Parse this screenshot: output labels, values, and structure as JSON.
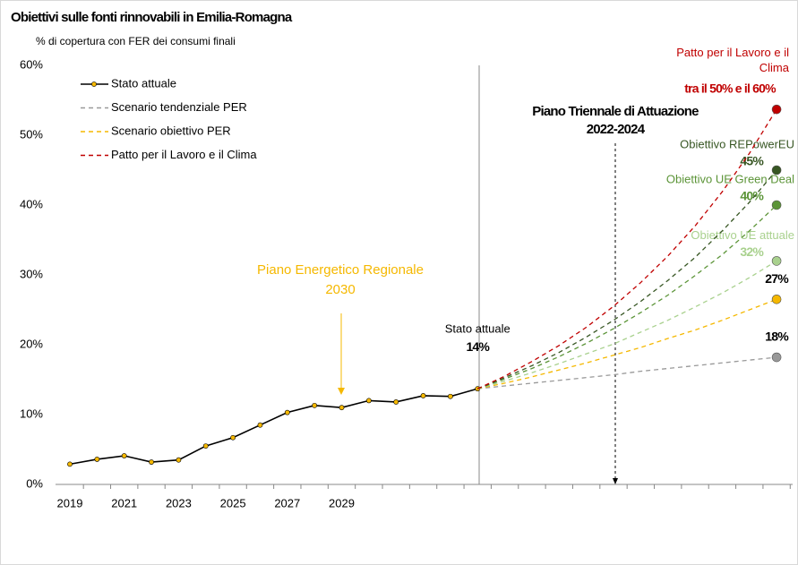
{
  "chart_data": {
    "type": "line",
    "title": "Obiettivi sulle fonti rinnovabili in Emilia-Romagna",
    "subtitle": "% di copertura con FER dei consumi finali",
    "categories": [
      "2019",
      null,
      "2021",
      null,
      "2023",
      null,
      "2025",
      null,
      "2027",
      null,
      "2029",
      null,
      null,
      null,
      null,
      null,
      null,
      null,
      null,
      null,
      null,
      null,
      null,
      null,
      null,
      null,
      null
    ],
    "ylim": [
      0,
      60
    ],
    "yticks": [
      {
        "value": 0,
        "label": "0%"
      },
      {
        "value": 10,
        "label": "10%"
      },
      {
        "value": 20,
        "label": "20%"
      },
      {
        "value": 30,
        "label": "30%"
      },
      {
        "value": 40,
        "label": "40%"
      },
      {
        "value": 50,
        "label": "50%"
      },
      {
        "value": 60,
        "label": "60%"
      }
    ],
    "grid": false,
    "legend": "top-left",
    "series": [
      {
        "name": "Stato attuale",
        "color": "#000000",
        "marker_color": "#f5b800",
        "dashed": false,
        "markers": true,
        "legend": true,
        "annotate_name": true,
        "end_label": "14%",
        "values": [
          2.9,
          3.6,
          4.1,
          3.2,
          3.5,
          5.5,
          6.7,
          8.5,
          10.3,
          11.3,
          11.0,
          12.0,
          11.8,
          12.7,
          12.6,
          13.7,
          null,
          null,
          null,
          null,
          null,
          null,
          null,
          null,
          null,
          null,
          null
        ]
      },
      {
        "name": "Scenario tendenziale PER",
        "color": "#999999",
        "dashed": true,
        "legend": true,
        "annotate_name": false,
        "end_label": "18%",
        "label_color": "#000000",
        "values": [
          null,
          null,
          null,
          null,
          null,
          null,
          null,
          null,
          null,
          null,
          null,
          null,
          null,
          null,
          null,
          13.7,
          14.1,
          14.5,
          14.9,
          15.3,
          15.7,
          16.2,
          16.6,
          17.0,
          17.4,
          17.8,
          18.2
        ]
      },
      {
        "name": "Scenario obiettivo PER",
        "color": "#f5b800",
        "dashed": true,
        "legend": true,
        "annotate_name": false,
        "end_label": "27%",
        "label_color": "#000000",
        "values": [
          null,
          null,
          null,
          null,
          null,
          null,
          null,
          null,
          null,
          null,
          null,
          null,
          null,
          null,
          null,
          13.7,
          14.5,
          15.4,
          16.4,
          17.4,
          18.5,
          19.6,
          20.9,
          22.1,
          23.5,
          25.0,
          26.5
        ]
      },
      {
        "name": "Obiettivo UE attuale",
        "color": "#a9d18e",
        "dashed": true,
        "legend": false,
        "annotate_name": true,
        "end_label": "32%",
        "values": [
          null,
          null,
          null,
          null,
          null,
          null,
          null,
          null,
          null,
          null,
          null,
          null,
          null,
          null,
          null,
          13.7,
          14.8,
          16.0,
          17.3,
          18.7,
          20.1,
          21.8,
          23.5,
          25.4,
          27.4,
          29.6,
          32.0
        ]
      },
      {
        "name": "Obiettivo UE Green Deal",
        "color": "#5b9437",
        "dashed": true,
        "legend": false,
        "annotate_name": true,
        "end_label": "40%",
        "values": [
          null,
          null,
          null,
          null,
          null,
          null,
          null,
          null,
          null,
          null,
          null,
          null,
          null,
          null,
          null,
          13.7,
          15.1,
          16.6,
          18.3,
          20.2,
          22.3,
          24.6,
          27.1,
          29.9,
          32.9,
          36.3,
          40.0
        ]
      },
      {
        "name": "Obiettivo REPowerEU",
        "color": "#375623",
        "dashed": true,
        "legend": false,
        "annotate_name": true,
        "end_label": "45%",
        "values": [
          null,
          null,
          null,
          null,
          null,
          null,
          null,
          null,
          null,
          null,
          null,
          null,
          null,
          null,
          null,
          13.7,
          15.3,
          17.0,
          18.9,
          21.1,
          23.5,
          26.2,
          29.2,
          32.5,
          36.3,
          40.4,
          45.0
        ]
      },
      {
        "name": "Patto per il Lavoro e il Clima",
        "color": "#c00000",
        "dashed": true,
        "legend": true,
        "annotate_name": true,
        "end_label": "tra il 50% e il 60%",
        "values": [
          null,
          null,
          null,
          null,
          null,
          null,
          null,
          null,
          null,
          null,
          null,
          null,
          null,
          null,
          null,
          13.7,
          15.5,
          17.6,
          19.9,
          22.5,
          25.5,
          28.9,
          32.7,
          37.0,
          41.9,
          47.4,
          53.7
        ]
      }
    ],
    "annotations": [
      {
        "lines": [
          "Piano Energetico Regionale",
          "2030"
        ],
        "color": "#f5b800"
      },
      {
        "lines": [
          "Piano Triennale di Attuazione",
          "2022-2024"
        ],
        "color": "#000000"
      }
    ]
  }
}
